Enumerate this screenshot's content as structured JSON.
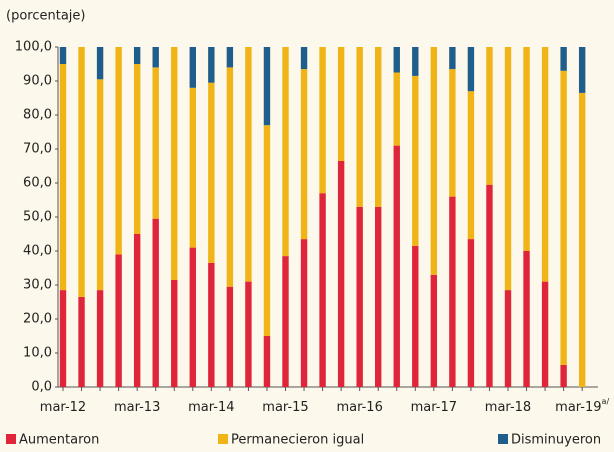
{
  "chart_data": {
    "type": "stacked_bar",
    "y_label": "(porcentaje)",
    "categories": [
      "mar-12",
      null,
      null,
      null,
      "mar-13",
      null,
      null,
      null,
      "mar-14",
      null,
      null,
      null,
      "mar-15",
      null,
      null,
      null,
      "mar-16",
      null,
      null,
      null,
      "mar-17",
      null,
      null,
      null,
      "mar-18",
      null,
      null,
      null,
      "mar-19"
    ],
    "category_superscript": "a/",
    "series": [
      {
        "name": "Aumentaron",
        "color": "#e0253a",
        "values": [
          28.5,
          26.5,
          28.5,
          39,
          45,
          49.5,
          31.5,
          41,
          36.5,
          29.5,
          31,
          15,
          38.5,
          43.5,
          57,
          66.5,
          53,
          53,
          71,
          41.5,
          33,
          56,
          43.5,
          59.5,
          28.5,
          40,
          31,
          6.5,
          0
        ]
      },
      {
        "name": "Permanecieron igual",
        "color": "#f0b416",
        "values": [
          66.5,
          73.5,
          62,
          61,
          50,
          44.5,
          68.5,
          47,
          53,
          64.5,
          69,
          62,
          61.5,
          50,
          43,
          33.5,
          47,
          47,
          21.5,
          50,
          67,
          37.5,
          43.5,
          40.5,
          71.5,
          60,
          69,
          86.5,
          86.5
        ]
      },
      {
        "name": "Disminuyeron",
        "color": "#1f5e8c",
        "values": [
          5,
          0,
          9.5,
          0,
          5,
          6,
          0,
          12,
          10.5,
          6,
          0,
          23,
          0,
          6.5,
          0,
          0,
          0,
          0,
          7.5,
          8.5,
          0,
          6.5,
          13,
          0,
          0,
          0,
          0,
          7,
          13.5
        ]
      }
    ],
    "ylim": [
      0,
      100
    ],
    "yticks": [
      {
        "value": 0,
        "label": "0,0"
      },
      {
        "value": 10,
        "label": "10,0"
      },
      {
        "value": 20,
        "label": "20,0"
      },
      {
        "value": 30,
        "label": "30,0"
      },
      {
        "value": 40,
        "label": "40,0"
      },
      {
        "value": 50,
        "label": "50,0"
      },
      {
        "value": 60,
        "label": "60,0"
      },
      {
        "value": 70,
        "label": "70,0"
      },
      {
        "value": 80,
        "label": "80,0"
      },
      {
        "value": 90,
        "label": "90,0"
      },
      {
        "value": 100,
        "label": "100,0"
      }
    ],
    "grid": false
  }
}
